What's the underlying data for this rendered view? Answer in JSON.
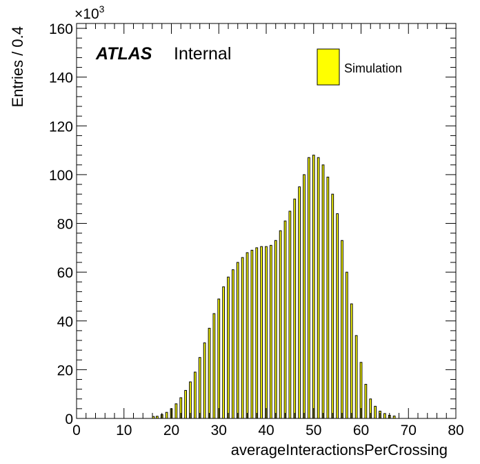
{
  "chart_data": {
    "type": "bar",
    "xlabel": "averageInteractionsPerCrossing",
    "ylabel": "Entries / 0.4",
    "y_multiplier": "×10",
    "y_multiplier_exp": "3",
    "xlim": [
      0,
      80
    ],
    "ylim": [
      0,
      162
    ],
    "x_ticks": [
      "0",
      "10",
      "20",
      "30",
      "40",
      "50",
      "60",
      "70",
      "80"
    ],
    "y_ticks": [
      "0",
      "20",
      "40",
      "60",
      "80",
      "100",
      "120",
      "140",
      "160"
    ],
    "experiment": "ATLAS",
    "status": "Internal",
    "legend_position": "top-right",
    "bar_color": "#ffff00",
    "series": [
      {
        "name": "Simulation",
        "x": [
          16.2,
          17.0,
          18.0,
          19.0,
          20.0,
          21.0,
          22.0,
          23.0,
          24.0,
          25.0,
          26.0,
          27.0,
          28.0,
          29.0,
          30.0,
          31.0,
          32.0,
          33.0,
          34.0,
          35.0,
          36.0,
          37.0,
          38.0,
          39.0,
          40.0,
          41.0,
          42.0,
          43.0,
          44.0,
          45.0,
          46.0,
          47.0,
          48.0,
          49.0,
          50.0,
          51.0,
          52.0,
          53.0,
          54.0,
          55.0,
          56.0,
          57.0,
          58.0,
          59.0,
          60.0,
          61.0,
          62.0,
          63.0,
          64.0,
          65.0,
          66.0,
          67.0
        ],
        "values": [
          0.8,
          0.9,
          1.6,
          2.5,
          4.0,
          6.0,
          8.5,
          11.5,
          15.0,
          19.0,
          25.0,
          31.0,
          37.0,
          43.0,
          49.0,
          54.0,
          58.0,
          61.0,
          64.0,
          66.0,
          68.0,
          69.0,
          70.0,
          70.5,
          70.5,
          71.0,
          73.0,
          77.0,
          81.0,
          85.0,
          90.0,
          95.0,
          100.0,
          107.0,
          108.0,
          107.0,
          104.0,
          99.0,
          92.0,
          84.0,
          73.0,
          60.0,
          47.0,
          34.0,
          23.0,
          14.0,
          8.0,
          5.0,
          3.0,
          2.0,
          1.3,
          1.0
        ]
      }
    ]
  }
}
